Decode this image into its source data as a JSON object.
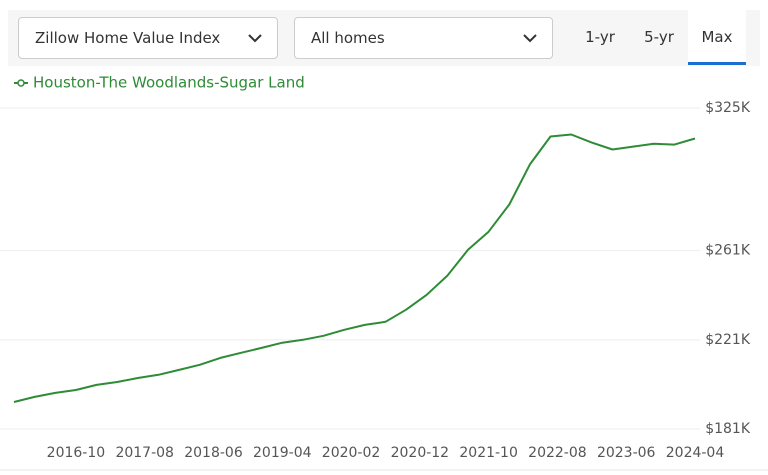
{
  "controls": {
    "index_dropdown": "Zillow Home Value Index",
    "home_type_dropdown": "All homes",
    "ranges": [
      "1-yr",
      "5-yr",
      "Max"
    ],
    "selected_range": 2
  },
  "chart_data": {
    "type": "line",
    "x": [
      "2016-01",
      "2016-04",
      "2016-07",
      "2016-10",
      "2017-01",
      "2017-04",
      "2017-07",
      "2017-10",
      "2018-01",
      "2018-04",
      "2018-07",
      "2018-10",
      "2019-01",
      "2019-04",
      "2019-07",
      "2019-10",
      "2020-01",
      "2020-04",
      "2020-07",
      "2020-10",
      "2021-01",
      "2021-04",
      "2021-07",
      "2021-10",
      "2022-01",
      "2022-04",
      "2022-07",
      "2022-10",
      "2023-01",
      "2023-04",
      "2023-07",
      "2023-10",
      "2024-01",
      "2024-04"
    ],
    "series": [
      {
        "name": "Houston-The Woodlands-Sugar Land",
        "color": "#2e8b36",
        "values": [
          193100,
          195400,
          197200,
          198500,
          200800,
          202100,
          203900,
          205300,
          207500,
          209800,
          212900,
          215200,
          217400,
          219700,
          221000,
          222800,
          225500,
          227700,
          229100,
          234500,
          241200,
          249800,
          261400,
          269500,
          281700,
          299700,
          312200,
          313100,
          309500,
          306400,
          307700,
          309000,
          308600,
          311300
        ]
      }
    ],
    "xlim": [
      "2016-01",
      "2024-04"
    ],
    "xticks": [
      "2016-10",
      "2017-08",
      "2018-06",
      "2019-04",
      "2020-02",
      "2020-12",
      "2021-10",
      "2022-08",
      "2023-06",
      "2024-04"
    ],
    "ylim": [
      181000,
      325000
    ],
    "yticks": [
      {
        "value": 181000,
        "label": "$181K"
      },
      {
        "value": 221000,
        "label": "$221K"
      },
      {
        "value": 261000,
        "label": "$261K"
      },
      {
        "value": 325000,
        "label": "$325K"
      }
    ],
    "grid": true
  }
}
